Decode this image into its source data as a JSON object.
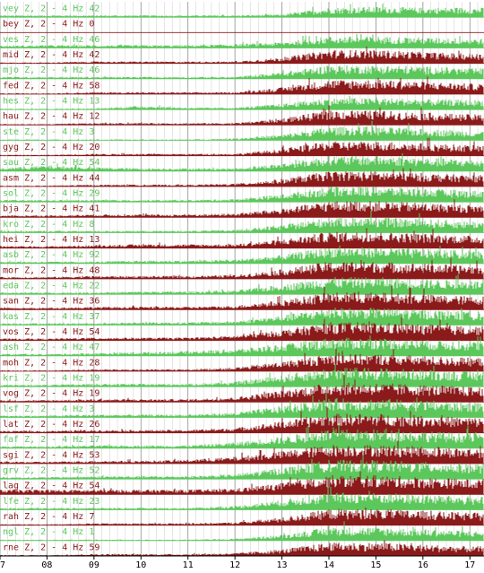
{
  "colors": {
    "green": "#5cc85c",
    "red": "#8b1a1a",
    "grid": "#c0c0c0",
    "baseline": "#000000"
  },
  "chart_data": {
    "type": "area",
    "xlim": [
      7,
      17.3
    ],
    "x_ticks": [
      "07",
      "08",
      "09",
      "10",
      "11",
      "12",
      "13",
      "14",
      "15",
      "16",
      "17"
    ],
    "grid": true,
    "series": [
      {
        "label": "vey Z, 2 - 4 Hz 42",
        "color": "green",
        "activity": [
          0.1,
          0.1,
          0.1,
          0.1,
          0.1,
          0.1,
          0.15,
          0.5,
          0.55,
          0.5,
          0.5
        ]
      },
      {
        "label": "bey Z, 2 - 4 Hz 0",
        "color": "red",
        "activity": [
          0,
          0,
          0,
          0,
          0,
          0,
          0,
          0,
          0,
          0,
          0
        ]
      },
      {
        "label": "ves Z, 2 - 4 Hz 46",
        "color": "green",
        "activity": [
          0.12,
          0.15,
          0.15,
          0.15,
          0.15,
          0.2,
          0.3,
          0.6,
          0.6,
          0.55,
          0.5
        ]
      },
      {
        "label": "mid Z, 2 - 4 Hz 42",
        "color": "red",
        "activity": [
          0.05,
          0.05,
          0.1,
          0.1,
          0.1,
          0.1,
          0.3,
          0.7,
          0.7,
          0.6,
          0.5
        ]
      },
      {
        "label": "mjo Z, 2 - 4 Hz 46",
        "color": "green",
        "activity": [
          0.1,
          0.1,
          0.1,
          0.1,
          0.1,
          0.1,
          0.35,
          0.7,
          0.7,
          0.65,
          0.55
        ]
      },
      {
        "label": "fed Z, 2 - 4 Hz 58",
        "color": "red",
        "activity": [
          0.05,
          0.05,
          0.1,
          0.1,
          0.1,
          0.1,
          0.35,
          0.75,
          0.75,
          0.65,
          0.55
        ]
      },
      {
        "label": "hes Z, 2 - 4 Hz 13",
        "color": "green",
        "activity": [
          0.05,
          0.05,
          0.05,
          0.2,
          0.1,
          0.1,
          0.3,
          0.6,
          0.6,
          0.55,
          0.5
        ]
      },
      {
        "label": "hau Z, 2 - 4 Hz 12",
        "color": "red",
        "activity": [
          0.05,
          0.05,
          0.1,
          0.1,
          0.1,
          0.1,
          0.35,
          0.75,
          0.75,
          0.65,
          0.55
        ]
      },
      {
        "label": "ste Z, 2 - 4 Hz 3",
        "color": "green",
        "activity": [
          0.05,
          0.05,
          0.05,
          0.05,
          0.05,
          0.1,
          0.3,
          0.7,
          0.7,
          0.6,
          0.5
        ]
      },
      {
        "label": "gyg Z, 2 - 4 Hz 20",
        "color": "red",
        "activity": [
          0.05,
          0.05,
          0.1,
          0.1,
          0.1,
          0.1,
          0.35,
          0.75,
          0.75,
          0.65,
          0.55
        ]
      },
      {
        "label": "sau Z, 2 - 4 Hz 54",
        "color": "green",
        "activity": [
          0.15,
          0.3,
          0.2,
          0.15,
          0.15,
          0.15,
          0.4,
          0.8,
          0.8,
          0.7,
          0.6
        ]
      },
      {
        "label": "asm Z, 2 - 4 Hz 44",
        "color": "red",
        "activity": [
          0.05,
          0.05,
          0.1,
          0.1,
          0.1,
          0.15,
          0.4,
          0.8,
          0.8,
          0.7,
          0.6
        ]
      },
      {
        "label": "sol Z, 2 - 4 Hz 29",
        "color": "green",
        "activity": [
          0.1,
          0.1,
          0.1,
          0.1,
          0.1,
          0.15,
          0.4,
          0.8,
          0.8,
          0.7,
          0.6
        ]
      },
      {
        "label": "bja Z, 2 - 4 Hz 41",
        "color": "red",
        "activity": [
          0.1,
          0.1,
          0.15,
          0.15,
          0.15,
          0.2,
          0.45,
          0.85,
          0.85,
          0.75,
          0.65
        ]
      },
      {
        "label": "kro Z, 2 - 4 Hz 8",
        "color": "green",
        "activity": [
          0.1,
          0.1,
          0.1,
          0.1,
          0.1,
          0.15,
          0.4,
          0.8,
          0.8,
          0.7,
          0.6
        ]
      },
      {
        "label": "hei Z, 2 - 4 Hz 13",
        "color": "red",
        "activity": [
          0.1,
          0.1,
          0.15,
          0.2,
          0.2,
          0.2,
          0.45,
          0.85,
          0.85,
          0.75,
          0.65
        ]
      },
      {
        "label": "asb Z, 2 - 4 Hz 92",
        "color": "green",
        "activity": [
          0.1,
          0.1,
          0.1,
          0.15,
          0.15,
          0.2,
          0.45,
          0.85,
          0.85,
          0.75,
          0.65
        ]
      },
      {
        "label": "mor Z, 2 - 4 Hz 48",
        "color": "red",
        "activity": [
          0.1,
          0.1,
          0.15,
          0.15,
          0.15,
          0.2,
          0.5,
          0.9,
          0.9,
          0.8,
          0.7
        ]
      },
      {
        "label": "eda Z, 2 - 4 Hz 22",
        "color": "green",
        "activity": [
          0.1,
          0.1,
          0.1,
          0.15,
          0.15,
          0.2,
          0.5,
          0.9,
          0.9,
          0.8,
          0.7
        ]
      },
      {
        "label": "san Z, 2 - 4 Hz 36",
        "color": "red",
        "activity": [
          0.1,
          0.1,
          0.15,
          0.15,
          0.15,
          0.2,
          0.5,
          0.9,
          0.9,
          0.8,
          0.7
        ]
      },
      {
        "label": "kas Z, 2 - 4 Hz 37",
        "color": "green",
        "activity": [
          0.1,
          0.1,
          0.1,
          0.15,
          0.15,
          0.2,
          0.5,
          0.9,
          0.9,
          0.8,
          0.7
        ]
      },
      {
        "label": "vos Z, 2 - 4 Hz 54",
        "color": "red",
        "activity": [
          0.1,
          0.1,
          0.15,
          0.15,
          0.15,
          0.25,
          0.55,
          0.95,
          0.95,
          0.85,
          0.75
        ]
      },
      {
        "label": "ash Z, 2 - 4 Hz 47",
        "color": "green",
        "activity": [
          0.1,
          0.1,
          0.15,
          0.2,
          0.25,
          0.35,
          0.6,
          0.95,
          0.95,
          0.85,
          0.75
        ]
      },
      {
        "label": "moh Z, 2 - 4 Hz 28",
        "color": "red",
        "activity": [
          0.05,
          0.05,
          0.1,
          0.1,
          0.1,
          0.2,
          0.5,
          0.9,
          0.9,
          0.8,
          0.7
        ]
      },
      {
        "label": "kri Z, 2 - 4 Hz 19",
        "color": "green",
        "activity": [
          0.1,
          0.1,
          0.15,
          0.15,
          0.15,
          0.25,
          0.6,
          1.0,
          1.0,
          0.9,
          0.8
        ]
      },
      {
        "label": "vog Z, 2 - 4 Hz 19",
        "color": "red",
        "activity": [
          0.1,
          0.1,
          0.15,
          0.15,
          0.15,
          0.25,
          0.6,
          1.0,
          1.0,
          0.9,
          0.8
        ]
      },
      {
        "label": "lsf Z, 2 - 4 Hz 3",
        "color": "green",
        "activity": [
          0.1,
          0.1,
          0.15,
          0.15,
          0.15,
          0.25,
          0.6,
          1.0,
          1.0,
          0.9,
          0.8
        ]
      },
      {
        "label": "lat Z, 2 - 4 Hz 26",
        "color": "red",
        "activity": [
          0.1,
          0.1,
          0.15,
          0.15,
          0.15,
          0.25,
          0.6,
          1.0,
          1.0,
          0.9,
          0.8
        ]
      },
      {
        "label": "faf Z, 2 - 4 Hz 17",
        "color": "green",
        "activity": [
          0.1,
          0.1,
          0.15,
          0.15,
          0.15,
          0.3,
          0.6,
          1.0,
          1.0,
          0.9,
          0.8
        ]
      },
      {
        "label": "sgi Z, 2 - 4 Hz 53",
        "color": "red",
        "activity": [
          0.1,
          0.1,
          0.15,
          0.15,
          0.2,
          0.35,
          0.65,
          1.0,
          1.0,
          0.9,
          0.8
        ]
      },
      {
        "label": "grv Z, 2 - 4 Hz 52",
        "color": "green",
        "activity": [
          0.1,
          0.1,
          0.15,
          0.15,
          0.15,
          0.25,
          0.6,
          1.0,
          1.0,
          0.9,
          0.8
        ]
      },
      {
        "label": "lag Z, 2 - 4 Hz 54",
        "color": "red",
        "activity": [
          0.25,
          0.25,
          0.25,
          0.25,
          0.25,
          0.3,
          0.6,
          1.0,
          1.0,
          0.9,
          0.8
        ]
      },
      {
        "label": "lfe Z, 2 - 4 Hz 23",
        "color": "green",
        "activity": [
          0.1,
          0.1,
          0.1,
          0.1,
          0.1,
          0.2,
          0.5,
          0.9,
          0.9,
          0.8,
          0.7
        ]
      },
      {
        "label": "rah Z, 2 - 4 Hz 7",
        "color": "red",
        "activity": [
          0.05,
          0.05,
          0.1,
          0.1,
          0.1,
          0.15,
          0.4,
          0.85,
          0.85,
          0.75,
          0.65
        ]
      },
      {
        "label": "ngl Z, 2 - 4 Hz 1",
        "color": "green",
        "activity": [
          0.05,
          0.05,
          0.05,
          0.05,
          0.05,
          0.1,
          0.3,
          0.7,
          0.7,
          0.6,
          0.5
        ]
      },
      {
        "label": "rne Z, 2 - 4 Hz 59",
        "color": "red",
        "activity": [
          0.05,
          0.05,
          0.1,
          0.1,
          0.1,
          0.15,
          0.35,
          0.7,
          0.7,
          0.6,
          0.5
        ]
      }
    ]
  }
}
